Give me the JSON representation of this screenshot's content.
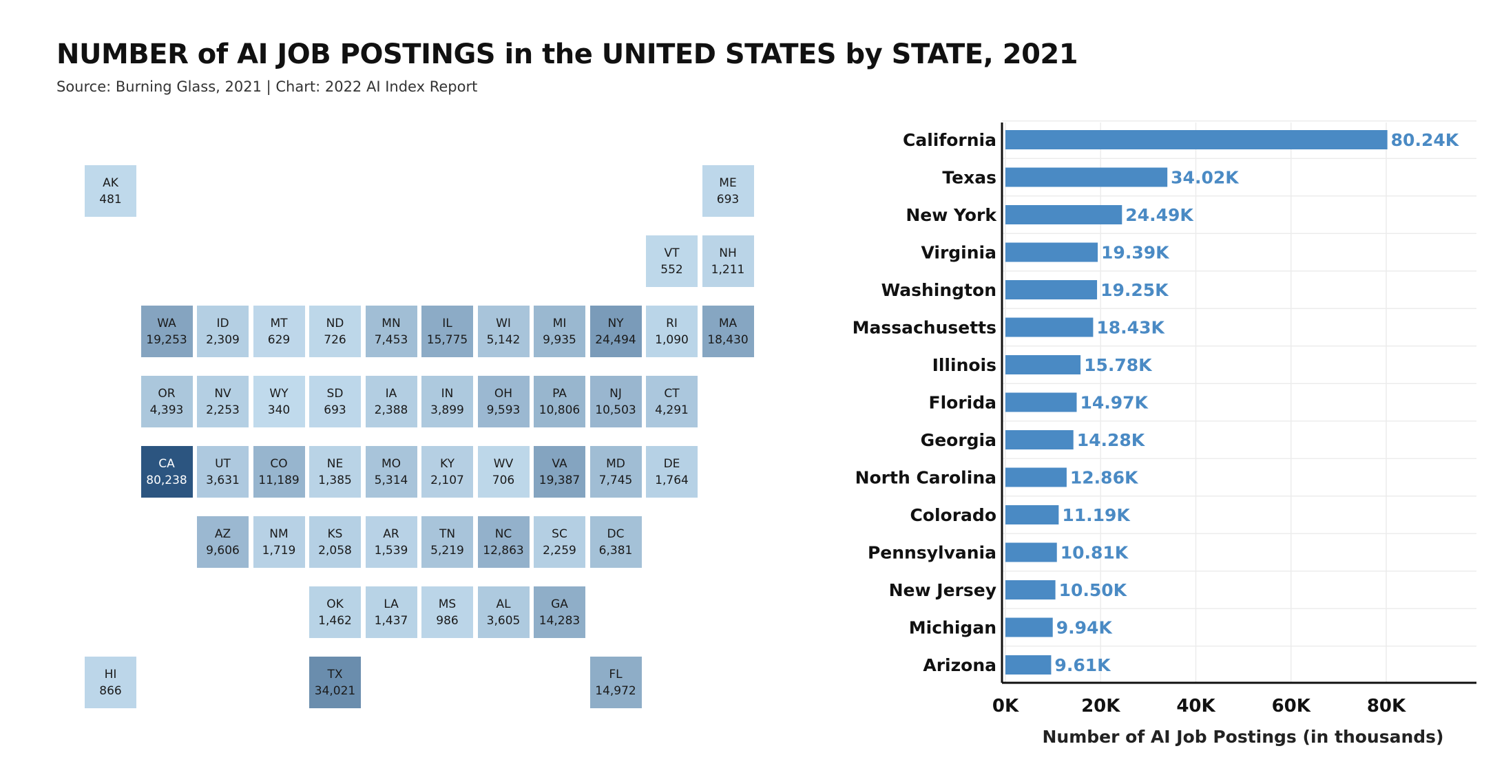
{
  "header": {
    "title": "NUMBER of AI JOB POSTINGS in the UNITED STATES by STATE, 2021",
    "subtitle": "Source: Burning Glass, 2021 | Chart: 2022 AI Index Report"
  },
  "colors": {
    "scale_low": "#c6dff0",
    "scale_high": "#2c5580",
    "bar": "#4a8ac4",
    "bar_label": "#4a8ac4",
    "axis": "#111111",
    "grid": "#ececec"
  },
  "chart_data": [
    {
      "type": "heatmap",
      "subtype": "state tile grid map",
      "tiles": [
        {
          "state": "AK",
          "value": 481,
          "value_label": "481"
        },
        {
          "state": "ME",
          "value": 693,
          "value_label": "693"
        },
        {
          "state": "VT",
          "value": 552,
          "value_label": "552"
        },
        {
          "state": "NH",
          "value": 1211,
          "value_label": "1,211"
        },
        {
          "state": "WA",
          "value": 19253,
          "value_label": "19,253"
        },
        {
          "state": "ID",
          "value": 2309,
          "value_label": "2,309"
        },
        {
          "state": "MT",
          "value": 629,
          "value_label": "629"
        },
        {
          "state": "ND",
          "value": 726,
          "value_label": "726"
        },
        {
          "state": "MN",
          "value": 7453,
          "value_label": "7,453"
        },
        {
          "state": "IL",
          "value": 15775,
          "value_label": "15,775"
        },
        {
          "state": "WI",
          "value": 5142,
          "value_label": "5,142"
        },
        {
          "state": "MI",
          "value": 9935,
          "value_label": "9,935"
        },
        {
          "state": "NY",
          "value": 24494,
          "value_label": "24,494"
        },
        {
          "state": "RI",
          "value": 1090,
          "value_label": "1,090"
        },
        {
          "state": "MA",
          "value": 18430,
          "value_label": "18,430"
        },
        {
          "state": "OR",
          "value": 4393,
          "value_label": "4,393"
        },
        {
          "state": "NV",
          "value": 2253,
          "value_label": "2,253"
        },
        {
          "state": "WY",
          "value": 340,
          "value_label": "340"
        },
        {
          "state": "SD",
          "value": 693,
          "value_label": "693"
        },
        {
          "state": "IA",
          "value": 2388,
          "value_label": "2,388"
        },
        {
          "state": "IN",
          "value": 3899,
          "value_label": "3,899"
        },
        {
          "state": "OH",
          "value": 9593,
          "value_label": "9,593"
        },
        {
          "state": "PA",
          "value": 10806,
          "value_label": "10,806"
        },
        {
          "state": "NJ",
          "value": 10503,
          "value_label": "10,503"
        },
        {
          "state": "CT",
          "value": 4291,
          "value_label": "4,291"
        },
        {
          "state": "CA",
          "value": 80238,
          "value_label": "80,238"
        },
        {
          "state": "UT",
          "value": 3631,
          "value_label": "3,631"
        },
        {
          "state": "CO",
          "value": 11189,
          "value_label": "11,189"
        },
        {
          "state": "NE",
          "value": 1385,
          "value_label": "1,385"
        },
        {
          "state": "MO",
          "value": 5314,
          "value_label": "5,314"
        },
        {
          "state": "KY",
          "value": 2107,
          "value_label": "2,107"
        },
        {
          "state": "WV",
          "value": 706,
          "value_label": "706"
        },
        {
          "state": "VA",
          "value": 19387,
          "value_label": "19,387"
        },
        {
          "state": "MD",
          "value": 7745,
          "value_label": "7,745"
        },
        {
          "state": "DE",
          "value": 1764,
          "value_label": "1,764"
        },
        {
          "state": "AZ",
          "value": 9606,
          "value_label": "9,606"
        },
        {
          "state": "NM",
          "value": 1719,
          "value_label": "1,719"
        },
        {
          "state": "KS",
          "value": 2058,
          "value_label": "2,058"
        },
        {
          "state": "AR",
          "value": 1539,
          "value_label": "1,539"
        },
        {
          "state": "TN",
          "value": 5219,
          "value_label": "5,219"
        },
        {
          "state": "NC",
          "value": 12863,
          "value_label": "12,863"
        },
        {
          "state": "SC",
          "value": 2259,
          "value_label": "2,259"
        },
        {
          "state": "DC",
          "value": 6381,
          "value_label": "6,381"
        },
        {
          "state": "OK",
          "value": 1462,
          "value_label": "1,462"
        },
        {
          "state": "LA",
          "value": 1437,
          "value_label": "1,437"
        },
        {
          "state": "MS",
          "value": 986,
          "value_label": "986"
        },
        {
          "state": "AL",
          "value": 3605,
          "value_label": "3,605"
        },
        {
          "state": "GA",
          "value": 14283,
          "value_label": "14,283"
        },
        {
          "state": "HI",
          "value": 866,
          "value_label": "866"
        },
        {
          "state": "TX",
          "value": 34021,
          "value_label": "34,021"
        },
        {
          "state": "FL",
          "value": 14972,
          "value_label": "14,972"
        }
      ]
    },
    {
      "type": "bar",
      "orientation": "horizontal",
      "categories": [
        "California",
        "Texas",
        "New York",
        "Virginia",
        "Washington",
        "Massachusetts",
        "Illinois",
        "Florida",
        "Georgia",
        "North Carolina",
        "Colorado",
        "Pennsylvania",
        "New Jersey",
        "Michigan",
        "Arizona"
      ],
      "values": [
        80.24,
        34.02,
        24.49,
        19.39,
        19.25,
        18.43,
        15.78,
        14.97,
        14.28,
        12.86,
        11.19,
        10.81,
        10.5,
        9.94,
        9.61
      ],
      "value_labels": [
        "80.24K",
        "34.02K",
        "24.49K",
        "19.39K",
        "19.25K",
        "18.43K",
        "15.78K",
        "14.97K",
        "14.28K",
        "12.86K",
        "11.19K",
        "10.81K",
        "10.50K",
        "9.94K",
        "9.61K"
      ],
      "xlabel": "Number of AI Job Postings (in thousands)",
      "xlim": [
        0,
        98
      ],
      "xticks": [
        0,
        20,
        40,
        60,
        80
      ],
      "xtick_labels": [
        "0K",
        "20K",
        "40K",
        "60K",
        "80K"
      ],
      "grid": true
    }
  ]
}
